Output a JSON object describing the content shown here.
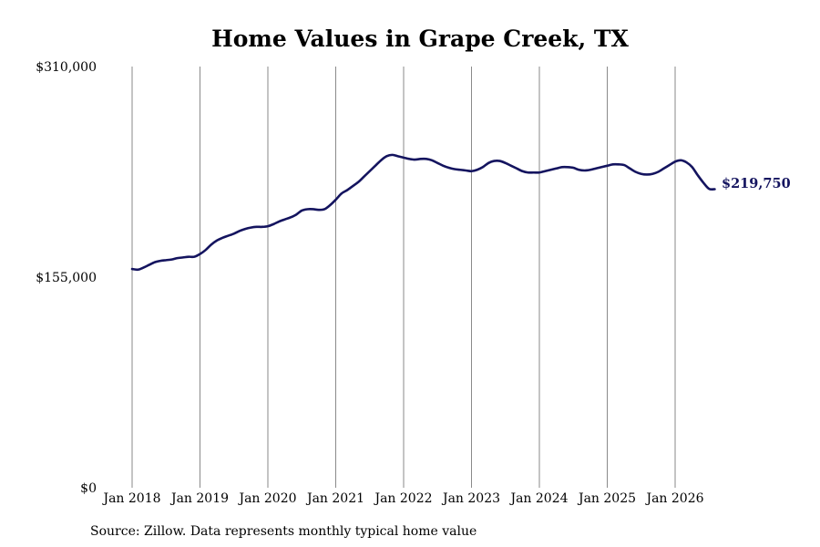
{
  "chart_data": {
    "type": "line",
    "title": "Home Values in Grape Creek, TX",
    "source": "Source: Zillow. Data represents monthly typical home value",
    "xlabel": "",
    "ylabel": "",
    "ylim": [
      0,
      310000
    ],
    "yticks": [
      {
        "value": 0,
        "label": "$0"
      },
      {
        "value": 155000,
        "label": "$155,000"
      },
      {
        "value": 310000,
        "label": "$310,000"
      }
    ],
    "xticks": [
      {
        "value": "2018-01",
        "label": "Jan 2018"
      },
      {
        "value": "2019-01",
        "label": "Jan 2019"
      },
      {
        "value": "2020-01",
        "label": "Jan 2020"
      },
      {
        "value": "2021-01",
        "label": "Jan 2021"
      },
      {
        "value": "2022-01",
        "label": "Jan 2022"
      },
      {
        "value": "2023-01",
        "label": "Jan 2023"
      },
      {
        "value": "2024-01",
        "label": "Jan 2024"
      },
      {
        "value": "2025-01",
        "label": "Jan 2025"
      },
      {
        "value": "2026-01",
        "label": "Jan 2026"
      }
    ],
    "grid": "vertical",
    "line_color": "#14145f",
    "end_label": "$219,750",
    "series": [
      {
        "x": [
          "2018-01",
          "2018-02",
          "2018-03",
          "2018-04",
          "2018-05",
          "2018-06",
          "2018-07",
          "2018-08",
          "2018-09",
          "2018-10",
          "2018-11",
          "2018-12",
          "2019-01",
          "2019-02",
          "2019-03",
          "2019-04",
          "2019-05",
          "2019-06",
          "2019-07",
          "2019-08",
          "2019-09",
          "2019-10",
          "2019-11",
          "2019-12",
          "2020-01",
          "2020-02",
          "2020-03",
          "2020-04",
          "2020-05",
          "2020-06",
          "2020-07",
          "2020-08",
          "2020-09",
          "2020-10",
          "2020-11",
          "2020-12",
          "2021-01",
          "2021-02",
          "2021-03",
          "2021-04",
          "2021-05",
          "2021-06",
          "2021-07",
          "2021-08",
          "2021-09",
          "2021-10",
          "2021-11",
          "2021-12",
          "2022-01",
          "2022-02",
          "2022-03",
          "2022-04",
          "2022-05",
          "2022-06",
          "2022-07",
          "2022-08",
          "2022-09",
          "2022-10",
          "2022-11",
          "2022-12",
          "2023-01",
          "2023-02",
          "2023-03",
          "2023-04",
          "2023-05",
          "2023-06",
          "2023-07",
          "2023-08",
          "2023-09",
          "2023-10",
          "2023-11",
          "2023-12",
          "2024-01",
          "2024-02",
          "2024-03",
          "2024-04",
          "2024-05",
          "2024-06",
          "2024-07",
          "2024-08",
          "2024-09",
          "2024-10",
          "2024-11",
          "2024-12",
          "2025-01",
          "2025-02",
          "2025-03",
          "2025-04",
          "2025-05",
          "2025-06",
          "2025-07",
          "2025-08",
          "2025-09",
          "2025-10",
          "2025-11",
          "2025-12",
          "2026-01",
          "2026-02",
          "2026-03",
          "2026-04",
          "2026-05",
          "2026-06",
          "2026-07",
          "2026-08"
        ],
        "values": [
          161000,
          160500,
          162000,
          164000,
          166000,
          167000,
          167500,
          168000,
          169000,
          169500,
          170000,
          170000,
          172000,
          175000,
          179000,
          182000,
          184000,
          185500,
          187000,
          189000,
          190500,
          191500,
          192000,
          192000,
          192500,
          194000,
          196000,
          197500,
          199000,
          201000,
          204000,
          205000,
          205000,
          204500,
          205000,
          208000,
          212000,
          216500,
          219000,
          222000,
          225000,
          229000,
          233000,
          237000,
          241000,
          244000,
          245000,
          244000,
          243000,
          242000,
          241500,
          242000,
          242000,
          241000,
          239000,
          237000,
          235500,
          234500,
          234000,
          233500,
          233000,
          234000,
          236000,
          239000,
          240500,
          240500,
          239000,
          237000,
          235000,
          233000,
          232000,
          232000,
          232000,
          233000,
          234000,
          235000,
          236000,
          236000,
          235500,
          234000,
          233500,
          234000,
          235000,
          236000,
          237000,
          238000,
          238000,
          237500,
          235000,
          232500,
          231000,
          230500,
          231000,
          232500,
          235000,
          237500,
          240000,
          241000,
          239500,
          236000,
          230000,
          224500,
          220000,
          219750
        ]
      }
    ]
  }
}
